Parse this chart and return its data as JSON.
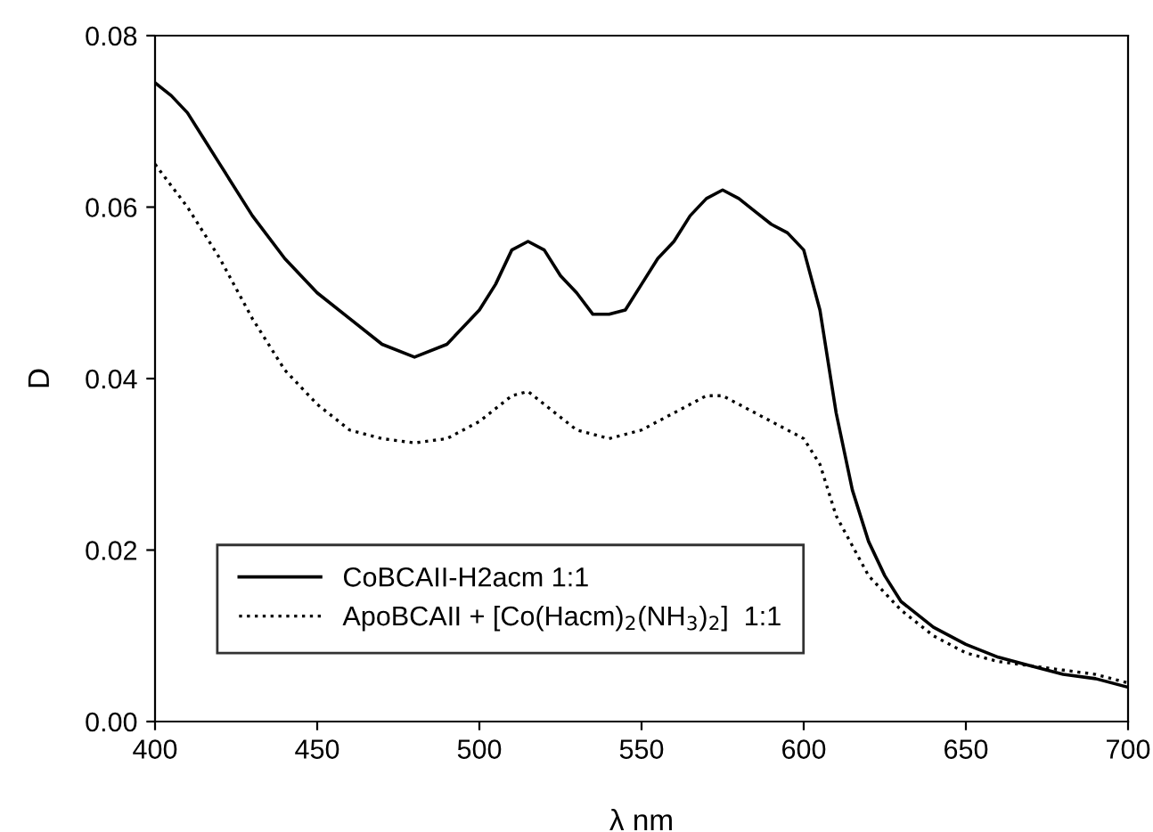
{
  "chart_data": {
    "type": "line",
    "xlabel": "λ nm",
    "ylabel": "D",
    "xlim": [
      400,
      700
    ],
    "xticks": [
      400,
      450,
      500,
      550,
      600,
      650,
      700
    ],
    "ylim": [
      0,
      0.08
    ],
    "yticks": [
      {
        "value": 0,
        "label": "0.00"
      },
      {
        "value": 0.02,
        "label": "0.02"
      },
      {
        "value": 0.04,
        "label": "0.04"
      },
      {
        "value": 0.06,
        "label": "0.06"
      },
      {
        "value": 0.08,
        "label": "0.08"
      }
    ],
    "grid": false,
    "legend": "bottom left",
    "marker": "none",
    "series": [
      {
        "name": "CoBCAII-H2acm 1:1",
        "color": "#000000",
        "line_style": "solid",
        "x": [
          400,
          405,
          410,
          415,
          420,
          430,
          440,
          450,
          460,
          470,
          480,
          490,
          500,
          505,
          510,
          515,
          520,
          525,
          530,
          535,
          540,
          545,
          550,
          555,
          560,
          565,
          570,
          575,
          580,
          585,
          590,
          595,
          600,
          605,
          610,
          615,
          620,
          625,
          630,
          640,
          650,
          660,
          670,
          680,
          690,
          700
        ],
        "values": [
          0.0745,
          0.073,
          0.071,
          0.068,
          0.065,
          0.059,
          0.054,
          0.05,
          0.047,
          0.044,
          0.0425,
          0.044,
          0.048,
          0.051,
          0.055,
          0.056,
          0.055,
          0.052,
          0.05,
          0.0475,
          0.0475,
          0.048,
          0.051,
          0.054,
          0.056,
          0.059,
          0.061,
          0.062,
          0.061,
          0.0595,
          0.058,
          0.057,
          0.055,
          0.048,
          0.036,
          0.027,
          0.021,
          0.017,
          0.014,
          0.011,
          0.009,
          0.0075,
          0.0065,
          0.0055,
          0.005,
          0.004
        ]
      },
      {
        "name": "ApoBCAII + [Co(Hacm)$_{2}$(NH$_{3}$)$_{2}$]  1:1",
        "color": "#000000",
        "line_style": "dotted",
        "x": [
          400,
          410,
          420,
          430,
          440,
          450,
          460,
          470,
          480,
          490,
          500,
          510,
          515,
          520,
          530,
          540,
          550,
          560,
          570,
          575,
          580,
          590,
          600,
          605,
          610,
          620,
          630,
          640,
          650,
          660,
          670,
          680,
          690,
          700
        ],
        "values": [
          0.065,
          0.06,
          0.054,
          0.047,
          0.041,
          0.037,
          0.034,
          0.033,
          0.0325,
          0.033,
          0.035,
          0.038,
          0.0385,
          0.037,
          0.034,
          0.033,
          0.034,
          0.036,
          0.038,
          0.038,
          0.037,
          0.035,
          0.033,
          0.03,
          0.024,
          0.017,
          0.013,
          0.01,
          0.008,
          0.007,
          0.0065,
          0.006,
          0.0055,
          0.0045
        ]
      }
    ]
  }
}
